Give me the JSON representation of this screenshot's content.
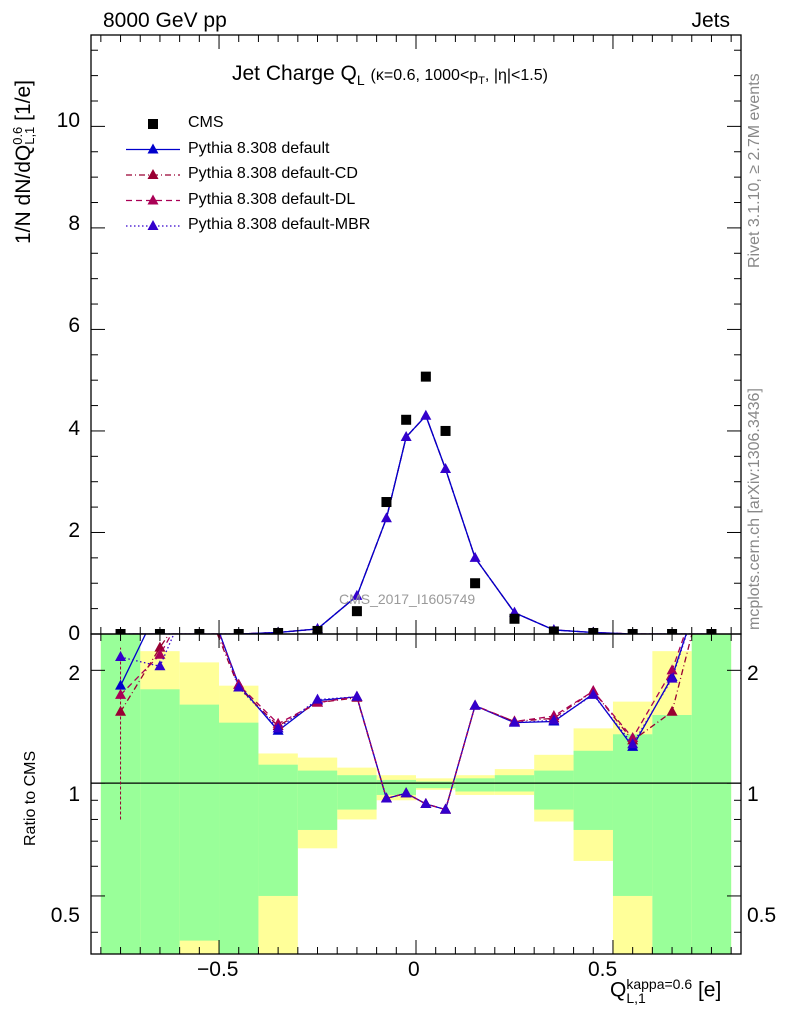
{
  "header": {
    "left": "8000 GeV pp",
    "right": "Jets"
  },
  "side_labels": {
    "rivet": "Rivet 3.1.10, ≥ 2.7M events",
    "mcplots": "mcplots.cern.ch [arXiv:1306.3436]"
  },
  "watermark": "CMS_2017_I1605749",
  "title": {
    "main": "Jet Charge Q",
    "main_sub": "L",
    "detail_pre": "(κ=0.6, 1000<p",
    "detail_sub": "T",
    "detail_post": ", |η|<1.5)"
  },
  "axes": {
    "y_main_label": {
      "pre": "1/N dN/dQ",
      "sup": "0.6",
      "sub": "L,1",
      "post": " [1/e]"
    },
    "y_ratio_label": "Ratio to CMS",
    "x_label": {
      "pre": "Q",
      "sup": "kappa=0.6",
      "sub": "L,1",
      "post": " [e]"
    },
    "y_main_ticks": [
      "0",
      "2",
      "4",
      "6",
      "8",
      "10"
    ],
    "y_ratio_ticks": [
      "0.5",
      "1",
      "2"
    ],
    "x_ticks": [
      "−0.5",
      "0",
      "0.5"
    ]
  },
  "legend": [
    {
      "label": "CMS",
      "color": "#000000",
      "marker": "square",
      "style": "none"
    },
    {
      "label": "Pythia 8.308 default",
      "color": "#0000cc",
      "marker": "triangle",
      "style": "solid"
    },
    {
      "label": "Pythia 8.308 default-CD",
      "color": "#990033",
      "marker": "triangle",
      "style": "dashdot"
    },
    {
      "label": "Pythia 8.308 default-DL",
      "color": "#aa0055",
      "marker": "triangle",
      "style": "dashed"
    },
    {
      "label": "Pythia 8.308 default-MBR",
      "color": "#3300cc",
      "marker": "triangle",
      "style": "dotted"
    }
  ],
  "chart_data": {
    "type": "scatter",
    "x_range": [
      -0.825,
      0.825
    ],
    "main": {
      "ylim": [
        0,
        11.8
      ],
      "cms": {
        "x": [
          -0.75,
          -0.65,
          -0.55,
          -0.45,
          -0.35,
          -0.25,
          -0.15,
          -0.075,
          -0.025,
          0.025,
          0.075,
          0.15,
          0.25,
          0.35,
          0.45,
          0.55,
          0.65,
          0.75
        ],
        "y": [
          0.0,
          0.0,
          0.0,
          0.0,
          0.02,
          0.06,
          0.45,
          2.6,
          4.22,
          5.07,
          4.0,
          1.0,
          0.3,
          0.05,
          0.02,
          0.0,
          0.0,
          0.0
        ]
      },
      "mc": {
        "x": [
          -0.75,
          -0.65,
          -0.55,
          -0.45,
          -0.35,
          -0.25,
          -0.15,
          -0.075,
          -0.025,
          0.025,
          0.075,
          0.15,
          0.25,
          0.35,
          0.45,
          0.55,
          0.65,
          0.75
        ],
        "y": [
          0.0,
          0.0,
          0.0,
          0.0,
          0.03,
          0.1,
          0.75,
          2.28,
          3.88,
          4.3,
          3.25,
          1.5,
          0.42,
          0.08,
          0.03,
          0.0,
          0.0,
          0.0
        ]
      }
    },
    "ratio": {
      "ylim": [
        0.35,
        2.5
      ],
      "log_scale": true,
      "x": [
        -0.75,
        -0.65,
        -0.55,
        -0.45,
        -0.35,
        -0.25,
        -0.15,
        -0.075,
        -0.025,
        0.025,
        0.075,
        0.15,
        0.25,
        0.35,
        0.45,
        0.55,
        0.65,
        0.75
      ],
      "series": [
        {
          "legend_index": 1,
          "values": [
            1.82,
            3.0,
            3.5,
            1.83,
            1.38,
            1.66,
            1.7,
            0.91,
            0.94,
            0.88,
            0.85,
            1.61,
            1.45,
            1.46,
            1.73,
            1.25,
            1.92,
            4.0
          ]
        },
        {
          "legend_index": 2,
          "values": [
            1.55,
            2.3,
            3.3,
            1.8,
            1.42,
            1.64,
            1.69,
            0.91,
            0.94,
            0.88,
            0.85,
            1.61,
            1.46,
            1.49,
            1.76,
            1.3,
            1.55,
            4.0
          ]
        },
        {
          "legend_index": 3,
          "values": [
            1.72,
            2.2,
            3.4,
            1.83,
            1.44,
            1.64,
            1.7,
            0.91,
            0.94,
            0.88,
            0.85,
            1.61,
            1.46,
            1.51,
            1.76,
            1.32,
            2.0,
            4.0
          ]
        },
        {
          "legend_index": 4,
          "values": [
            2.17,
            2.05,
            3.6,
            1.8,
            1.4,
            1.67,
            1.7,
            0.91,
            0.94,
            0.88,
            0.85,
            1.61,
            1.45,
            1.47,
            1.72,
            1.27,
            1.9,
            4.0
          ]
        }
      ],
      "band_edges": [
        -0.8,
        -0.7,
        -0.6,
        -0.5,
        -0.4,
        -0.3,
        -0.2,
        -0.1,
        0.0,
        0.1,
        0.2,
        0.3,
        0.4,
        0.5,
        0.6,
        0.7,
        0.8
      ],
      "green_band": [
        [
          0.2,
          5.0
        ],
        [
          0.2,
          1.78
        ],
        [
          0.38,
          1.62
        ],
        [
          0.2,
          1.45
        ],
        [
          0.5,
          1.12
        ],
        [
          0.75,
          1.08
        ],
        [
          0.85,
          1.05
        ],
        [
          0.93,
          1.02
        ],
        [
          0.97,
          1.01
        ],
        [
          0.95,
          1.03
        ],
        [
          0.95,
          1.05
        ],
        [
          0.85,
          1.08
        ],
        [
          0.75,
          1.22
        ],
        [
          0.5,
          1.35
        ],
        [
          0.27,
          1.52
        ],
        [
          0.2,
          5.0
        ]
      ],
      "yellow_band": [
        [
          0.2,
          5.0
        ],
        [
          0.2,
          2.25
        ],
        [
          0.2,
          2.1
        ],
        [
          0.2,
          1.82
        ],
        [
          0.2,
          1.2
        ],
        [
          0.67,
          1.17
        ],
        [
          0.8,
          1.1
        ],
        [
          0.9,
          1.05
        ],
        [
          0.96,
          1.03
        ],
        [
          0.93,
          1.05
        ],
        [
          0.93,
          1.09
        ],
        [
          0.79,
          1.19
        ],
        [
          0.62,
          1.4
        ],
        [
          0.3,
          1.65
        ],
        [
          0.2,
          2.25
        ],
        [
          0.2,
          5.0
        ]
      ]
    }
  }
}
